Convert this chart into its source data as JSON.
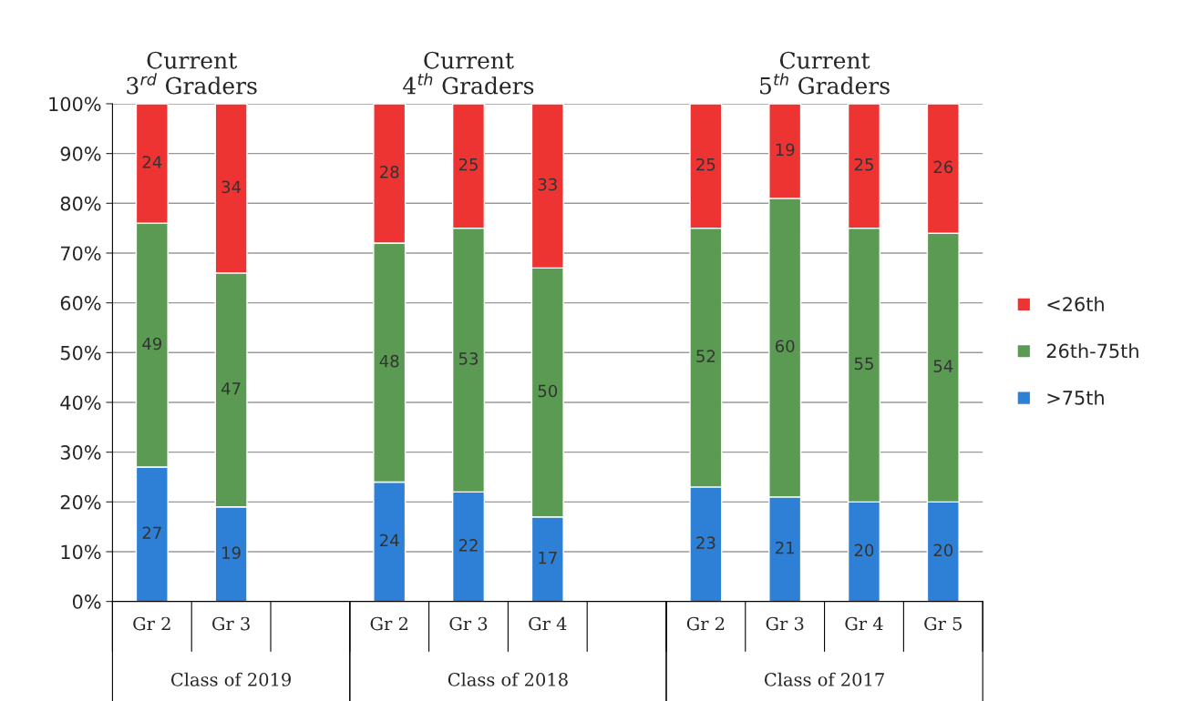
{
  "chart_data": {
    "type": "bar",
    "stacked": true,
    "categories": [
      "Gr 2",
      "Gr 3",
      null,
      "Gr 2",
      "Gr 3",
      "Gr 4",
      null,
      "Gr 2",
      "Gr 3",
      "Gr 4",
      "Gr 5"
    ],
    "series": [
      {
        "name": ">75th",
        "color": "#2e80d6",
        "values": [
          27,
          19,
          null,
          24,
          22,
          17,
          null,
          23,
          21,
          20,
          20
        ]
      },
      {
        "name": "26th-75th",
        "color": "#5b9a52",
        "values": [
          49,
          47,
          null,
          48,
          53,
          50,
          null,
          52,
          60,
          55,
          54
        ]
      },
      {
        "name": "<26th",
        "color": "#ee3333",
        "values": [
          24,
          34,
          null,
          28,
          25,
          33,
          null,
          25,
          19,
          25,
          26
        ]
      }
    ],
    "ylim": [
      0,
      100
    ],
    "yticks": [
      {
        "value": 0,
        "label": "0%"
      },
      {
        "value": 10,
        "label": "10%"
      },
      {
        "value": 20,
        "label": "20%"
      },
      {
        "value": 30,
        "label": "30%"
      },
      {
        "value": 40,
        "label": "40%"
      },
      {
        "value": 50,
        "label": "50%"
      },
      {
        "value": 60,
        "label": "60%"
      },
      {
        "value": 70,
        "label": "70%"
      },
      {
        "value": 80,
        "label": "80%"
      },
      {
        "value": 90,
        "label": "90%"
      },
      {
        "value": 100,
        "label": "100%"
      }
    ],
    "grid": "y",
    "legend": "right",
    "data_labels": true,
    "annotations": [
      "Current\n3$^{rd}$ Graders",
      "Current\n4$^{th}$ Graders",
      "Current\n5$^{th}$ Graders",
      "Class of 2019",
      "Class of 2018",
      "Class of 2017"
    ]
  }
}
